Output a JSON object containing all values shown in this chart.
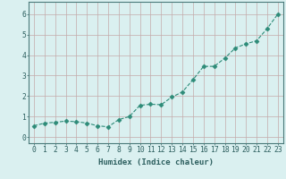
{
  "x": [
    0,
    1,
    2,
    3,
    4,
    5,
    6,
    7,
    8,
    9,
    10,
    11,
    12,
    13,
    14,
    15,
    16,
    17,
    18,
    19,
    20,
    21,
    22,
    23
  ],
  "y": [
    0.55,
    0.68,
    0.72,
    0.78,
    0.75,
    0.68,
    0.55,
    0.5,
    0.85,
    1.0,
    1.55,
    1.6,
    1.58,
    1.95,
    2.2,
    2.8,
    3.45,
    3.45,
    3.85,
    4.35,
    4.55,
    4.7,
    5.3,
    6.0
  ],
  "line_color": "#2d8b78",
  "marker": "D",
  "marker_size": 2.5,
  "bg_color": "#daf0f0",
  "grid_color": "#c4aaaa",
  "xlabel": "Humidex (Indice chaleur)",
  "xlim": [
    -0.5,
    23.5
  ],
  "ylim": [
    -0.3,
    6.6
  ],
  "xticks": [
    0,
    1,
    2,
    3,
    4,
    5,
    6,
    7,
    8,
    9,
    10,
    11,
    12,
    13,
    14,
    15,
    16,
    17,
    18,
    19,
    20,
    21,
    22,
    23
  ],
  "yticks": [
    0,
    1,
    2,
    3,
    4,
    5,
    6
  ],
  "xlabel_fontsize": 6.5,
  "tick_fontsize": 5.8,
  "line_width": 0.8,
  "linestyle": "--"
}
